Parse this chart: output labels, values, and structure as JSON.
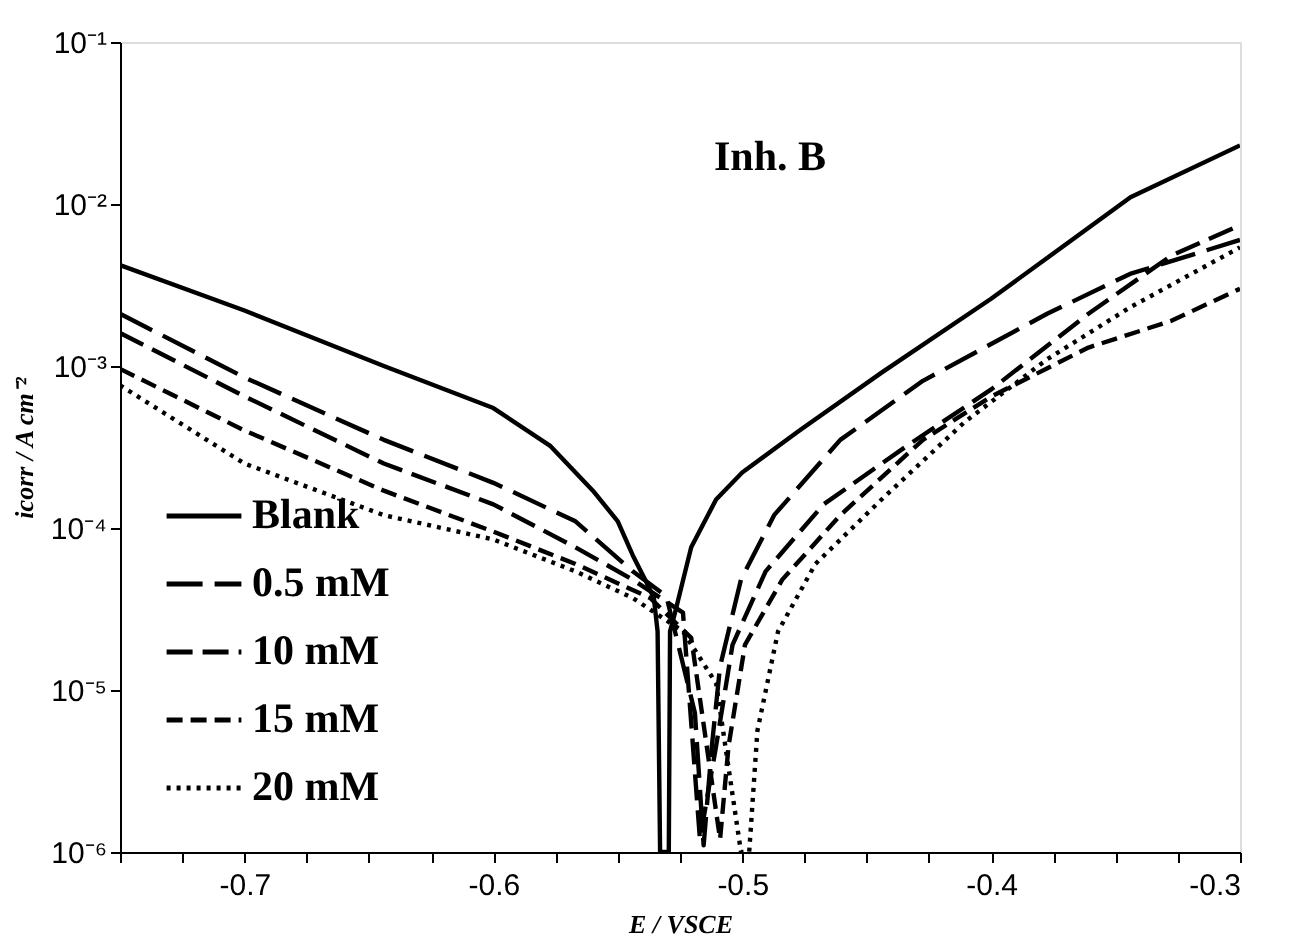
{
  "chart_data": {
    "type": "line",
    "xlabel": "E / VSCE",
    "ylabel": "icorr / A cm⁻²",
    "annotations": [
      "Inh. B"
    ],
    "log": "y",
    "grid": false,
    "legend": "bottom left",
    "marker": "none",
    "xlim": [
      -0.75,
      -0.3
    ],
    "xticks": [
      {
        "value": -0.75,
        "label": null
      },
      {
        "value": -0.725,
        "label": null
      },
      -0.7,
      {
        "value": -0.675,
        "label": null
      },
      {
        "value": -0.65,
        "label": null
      },
      {
        "value": -0.625,
        "label": null
      },
      -0.6,
      {
        "value": -0.575,
        "label": null
      },
      {
        "value": -0.55,
        "label": null
      },
      {
        "value": -0.525,
        "label": null
      },
      -0.5,
      {
        "value": -0.475,
        "label": null
      },
      {
        "value": -0.45,
        "label": null
      },
      {
        "value": -0.425,
        "label": null
      },
      -0.4,
      {
        "value": -0.375,
        "label": null
      },
      {
        "value": -0.35,
        "label": null
      },
      {
        "value": -0.325,
        "label": null
      },
      -0.3
    ],
    "ylim": [
      1e-06,
      0.1
    ],
    "yticks": [
      {
        "value": 1e-06,
        "label": "10⁻⁶"
      },
      {
        "value": 1e-05,
        "label": "10⁻⁵"
      },
      {
        "value": 0.0001,
        "label": "10⁻⁴"
      },
      {
        "value": 0.001,
        "label": "10⁻³"
      },
      {
        "value": 0.01,
        "label": "10⁻²"
      },
      {
        "value": 0.1,
        "label": "10⁻¹"
      }
    ],
    "series": [
      {
        "name": "Blank",
        "color": "#000000",
        "line_style": "solid",
        "x": [
          -0.75,
          -0.7,
          -0.644,
          -0.6,
          -0.577,
          -0.56,
          -0.55,
          -0.544,
          -0.539,
          -0.5355,
          -0.534,
          -0.533,
          -0.5295,
          -0.529,
          -0.527,
          -0.5205,
          -0.5105,
          -0.5,
          -0.477,
          -0.444,
          -0.4,
          -0.344,
          -0.3
        ],
        "values": [
          0.0042,
          0.0022,
          0.001,
          0.00055,
          0.00032,
          0.00017,
          0.00011,
          6.8e-05,
          4.8e-05,
          3.7e-05,
          2.3e-05,
          1e-06,
          1e-06,
          2.3e-05,
          3e-05,
          7.6e-05,
          0.00015,
          0.00022,
          0.0004,
          0.00091,
          0.0026,
          0.011,
          0.023
        ]
      },
      {
        "name": "0.5 mM",
        "color": "#000000",
        "line_style": "dashed",
        "x": [
          -0.75,
          -0.7,
          -0.644,
          -0.6,
          -0.567,
          -0.544,
          -0.5305,
          -0.519,
          -0.5155,
          -0.5122,
          -0.5089,
          -0.5005,
          -0.4872,
          -0.4606,
          -0.4274,
          -0.3775,
          -0.3442,
          -0.3
        ],
        "values": [
          0.0021,
          0.00085,
          0.00035,
          0.00019,
          0.00011,
          5.4e-05,
          3.8e-05,
          7.2e-06,
          1.1e-06,
          4.5e-06,
          1.4e-05,
          4.8e-05,
          0.00012,
          0.00035,
          0.00081,
          0.0021,
          0.0037,
          0.006
        ]
      },
      {
        "name": "10 mM",
        "color": "#000000",
        "line_style": "dashed",
        "x": [
          -0.75,
          -0.7,
          -0.644,
          -0.6,
          -0.567,
          -0.544,
          -0.5238,
          -0.517,
          -0.5105,
          -0.5039,
          -0.4906,
          -0.4673,
          -0.434,
          -0.3998,
          -0.3609,
          -0.3276,
          -0.3
        ],
        "values": [
          0.0016,
          0.00065,
          0.00025,
          0.00014,
          7.6e-05,
          4.8e-05,
          3e-05,
          1.2e-06,
          4.5e-06,
          1.9e-05,
          5.4e-05,
          0.00014,
          0.00032,
          0.00072,
          0.0021,
          0.0048,
          0.0074
        ]
      },
      {
        "name": "15 mM",
        "color": "#000000",
        "line_style": "dashed",
        "x": [
          -0.75,
          -0.7,
          -0.644,
          -0.6,
          -0.567,
          -0.537,
          -0.5205,
          -0.5089,
          -0.5055,
          -0.4989,
          -0.4839,
          -0.4606,
          -0.4274,
          -0.3998,
          -0.3609,
          -0.3276,
          -0.3
        ],
        "values": [
          0.00096,
          0.0004,
          0.00017,
          9.5e-05,
          6e-05,
          3.7e-05,
          2.1e-05,
          1.2e-06,
          4.5e-06,
          1.9e-05,
          4.8e-05,
          0.00012,
          0.00035,
          0.00065,
          0.0013,
          0.0019,
          0.003
        ]
      },
      {
        "name": "20 mM",
        "color": "#000000",
        "line_style": "dotted",
        "x": [
          -0.75,
          -0.7,
          -0.644,
          -0.6,
          -0.567,
          -0.544,
          -0.5238,
          -0.5105,
          -0.5005,
          -0.4972,
          -0.4939,
          -0.4856,
          -0.4706,
          -0.444,
          -0.4107,
          -0.3775,
          -0.3442,
          -0.3
        ],
        "values": [
          0.00076,
          0.00025,
          0.00012,
          8.5e-05,
          5.4e-05,
          3.7e-05,
          2.3e-05,
          1.1e-05,
          1e-06,
          1e-06,
          5.6e-06,
          2.3e-05,
          6e-05,
          0.00015,
          0.00045,
          0.0011,
          0.0023,
          0.0054
        ]
      }
    ]
  }
}
